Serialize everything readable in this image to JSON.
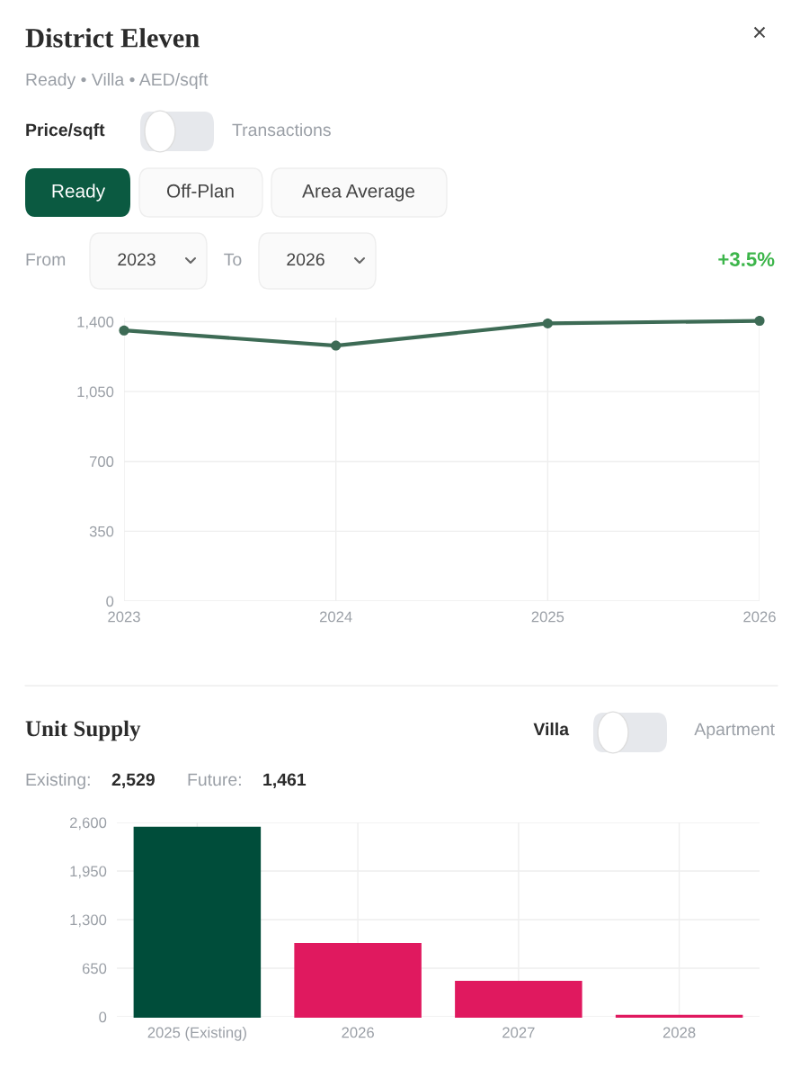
{
  "chart_data": [
    {
      "type": "line",
      "title": "District Eleven",
      "subtitle": "Ready • Villa • AED/sqft",
      "annotations": [
        "×",
        "Price/sqft",
        "Transactions",
        "Ready",
        "Off-Plan",
        "Area Average",
        "From",
        "2023",
        "To",
        "2026",
        "+3.5%"
      ],
      "categories": [
        "2023",
        "2024",
        "2025",
        "2026"
      ],
      "series": [
        {
          "color": "#3d6b55",
          "values": [
            1356,
            1280,
            1391,
            1404
          ]
        }
      ],
      "ylim": [
        0,
        1420
      ],
      "yticks": [
        0,
        350,
        700,
        {
          "value": 1050,
          "label": "1,050"
        },
        {
          "value": 1400,
          "label": "1,400"
        }
      ],
      "grid": true,
      "marker": "circle",
      "line_style": "solid"
    },
    {
      "type": "bar",
      "title": "Unit Supply",
      "annotations": [
        "Villa",
        "Apartment",
        "Existing:",
        "2,529",
        "Future:",
        "1,461"
      ],
      "categories": [
        "2025 (Existing)",
        "2026",
        "2027",
        "2028"
      ],
      "values": [
        2529,
        975,
        470,
        16
      ],
      "colors": [
        "#004d3a",
        "#e0195f",
        "#e0195f",
        "#e0195f"
      ],
      "ylim": [
        0,
        2600
      ],
      "yticks": [
        0,
        650,
        {
          "value": 1300,
          "label": "1,300"
        },
        {
          "value": 1950,
          "label": "1,950"
        },
        {
          "value": 2600,
          "label": "2,600"
        }
      ],
      "grid": true
    }
  ]
}
